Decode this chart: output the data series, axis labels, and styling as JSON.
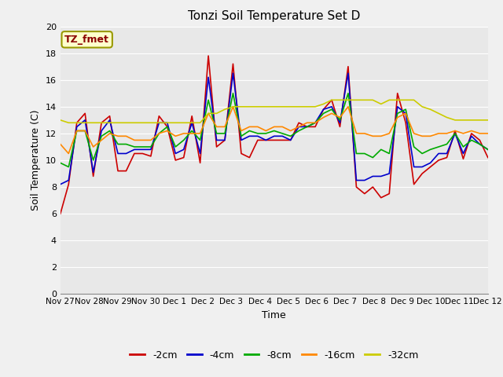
{
  "title": "Tonzi Soil Temperature Set D",
  "xlabel": "Time",
  "ylabel": "Soil Temperature (C)",
  "xlim": [
    0,
    15
  ],
  "ylim": [
    0,
    20
  ],
  "yticks": [
    0,
    2,
    4,
    6,
    8,
    10,
    12,
    14,
    16,
    18,
    20
  ],
  "xtick_labels": [
    "Nov 27",
    "Nov 28",
    "Nov 29",
    "Nov 30",
    "Dec 1",
    "Dec 2",
    "Dec 3",
    "Dec 4",
    "Dec 5",
    "Dec 6",
    "Dec 7",
    "Dec 8",
    "Dec 9",
    "Dec 10",
    "Dec 11",
    "Dec 12"
  ],
  "background_color": "#e8e8e8",
  "fig_background": "#f0f0f0",
  "grid_color": "#ffffff",
  "legend_label": "TZ_fmet",
  "series_colors": {
    "-2cm": "#cc0000",
    "-4cm": "#0000cc",
    "-8cm": "#00aa00",
    "-16cm": "#ff8800",
    "-32cm": "#cccc00"
  },
  "series": {
    "-2cm": [
      6.0,
      8.2,
      12.8,
      13.5,
      8.8,
      12.8,
      13.3,
      9.2,
      9.2,
      10.5,
      10.5,
      10.3,
      13.3,
      12.5,
      10.0,
      10.2,
      13.3,
      9.8,
      17.8,
      11.0,
      11.5,
      17.2,
      10.5,
      10.2,
      11.5,
      11.5,
      11.5,
      11.5,
      11.5,
      12.8,
      12.5,
      12.5,
      13.8,
      14.5,
      12.5,
      17.0,
      8.0,
      7.5,
      8.0,
      7.2,
      7.5,
      15.0,
      12.8,
      8.2,
      9.0,
      9.5,
      10.0,
      10.2,
      12.2,
      10.1,
      12.0,
      11.5,
      10.2
    ],
    "-4cm": [
      8.2,
      8.5,
      12.5,
      13.0,
      9.1,
      12.2,
      13.0,
      10.5,
      10.5,
      10.8,
      10.8,
      10.8,
      12.8,
      12.8,
      10.5,
      10.8,
      12.8,
      10.5,
      16.2,
      11.5,
      11.5,
      16.5,
      11.5,
      11.8,
      11.8,
      11.5,
      11.8,
      11.8,
      11.5,
      12.5,
      12.5,
      12.8,
      13.8,
      14.0,
      12.8,
      16.5,
      8.5,
      8.5,
      8.8,
      8.8,
      9.0,
      14.0,
      13.5,
      9.5,
      9.5,
      9.8,
      10.5,
      10.5,
      12.0,
      10.5,
      11.8,
      11.2,
      10.8
    ],
    "-8cm": [
      9.8,
      9.5,
      12.2,
      12.2,
      10.0,
      11.8,
      12.2,
      11.2,
      11.2,
      11.0,
      11.0,
      11.0,
      12.0,
      12.5,
      11.0,
      11.5,
      12.2,
      11.5,
      14.5,
      12.0,
      12.0,
      15.0,
      11.8,
      12.2,
      12.0,
      12.0,
      12.2,
      12.0,
      11.8,
      12.2,
      12.5,
      12.8,
      13.5,
      13.8,
      13.0,
      15.0,
      10.5,
      10.5,
      10.2,
      10.8,
      10.5,
      13.5,
      13.8,
      11.0,
      10.5,
      10.8,
      11.0,
      11.2,
      12.0,
      11.0,
      11.5,
      11.2,
      10.8
    ],
    "-16cm": [
      11.2,
      10.5,
      12.2,
      12.2,
      11.0,
      11.5,
      12.0,
      11.8,
      11.8,
      11.5,
      11.5,
      11.5,
      12.0,
      12.2,
      11.8,
      12.0,
      12.0,
      12.0,
      13.5,
      12.5,
      12.5,
      14.0,
      12.2,
      12.5,
      12.5,
      12.2,
      12.5,
      12.5,
      12.2,
      12.5,
      12.8,
      12.8,
      13.2,
      13.5,
      13.2,
      14.0,
      12.0,
      12.0,
      11.8,
      11.8,
      12.0,
      13.2,
      13.5,
      12.0,
      11.8,
      11.8,
      12.0,
      12.0,
      12.2,
      12.0,
      12.2,
      12.0,
      12.0
    ],
    "-32cm": [
      13.0,
      12.8,
      12.8,
      12.8,
      12.8,
      12.8,
      12.8,
      12.8,
      12.8,
      12.8,
      12.8,
      12.8,
      12.8,
      12.8,
      12.8,
      12.8,
      12.8,
      12.8,
      13.5,
      13.5,
      13.8,
      14.0,
      14.0,
      14.0,
      14.0,
      14.0,
      14.0,
      14.0,
      14.0,
      14.0,
      14.0,
      14.0,
      14.2,
      14.5,
      14.5,
      14.5,
      14.5,
      14.5,
      14.5,
      14.2,
      14.5,
      14.5,
      14.5,
      14.5,
      14.0,
      13.8,
      13.5,
      13.2,
      13.0,
      13.0,
      13.0,
      13.0,
      13.0
    ]
  }
}
